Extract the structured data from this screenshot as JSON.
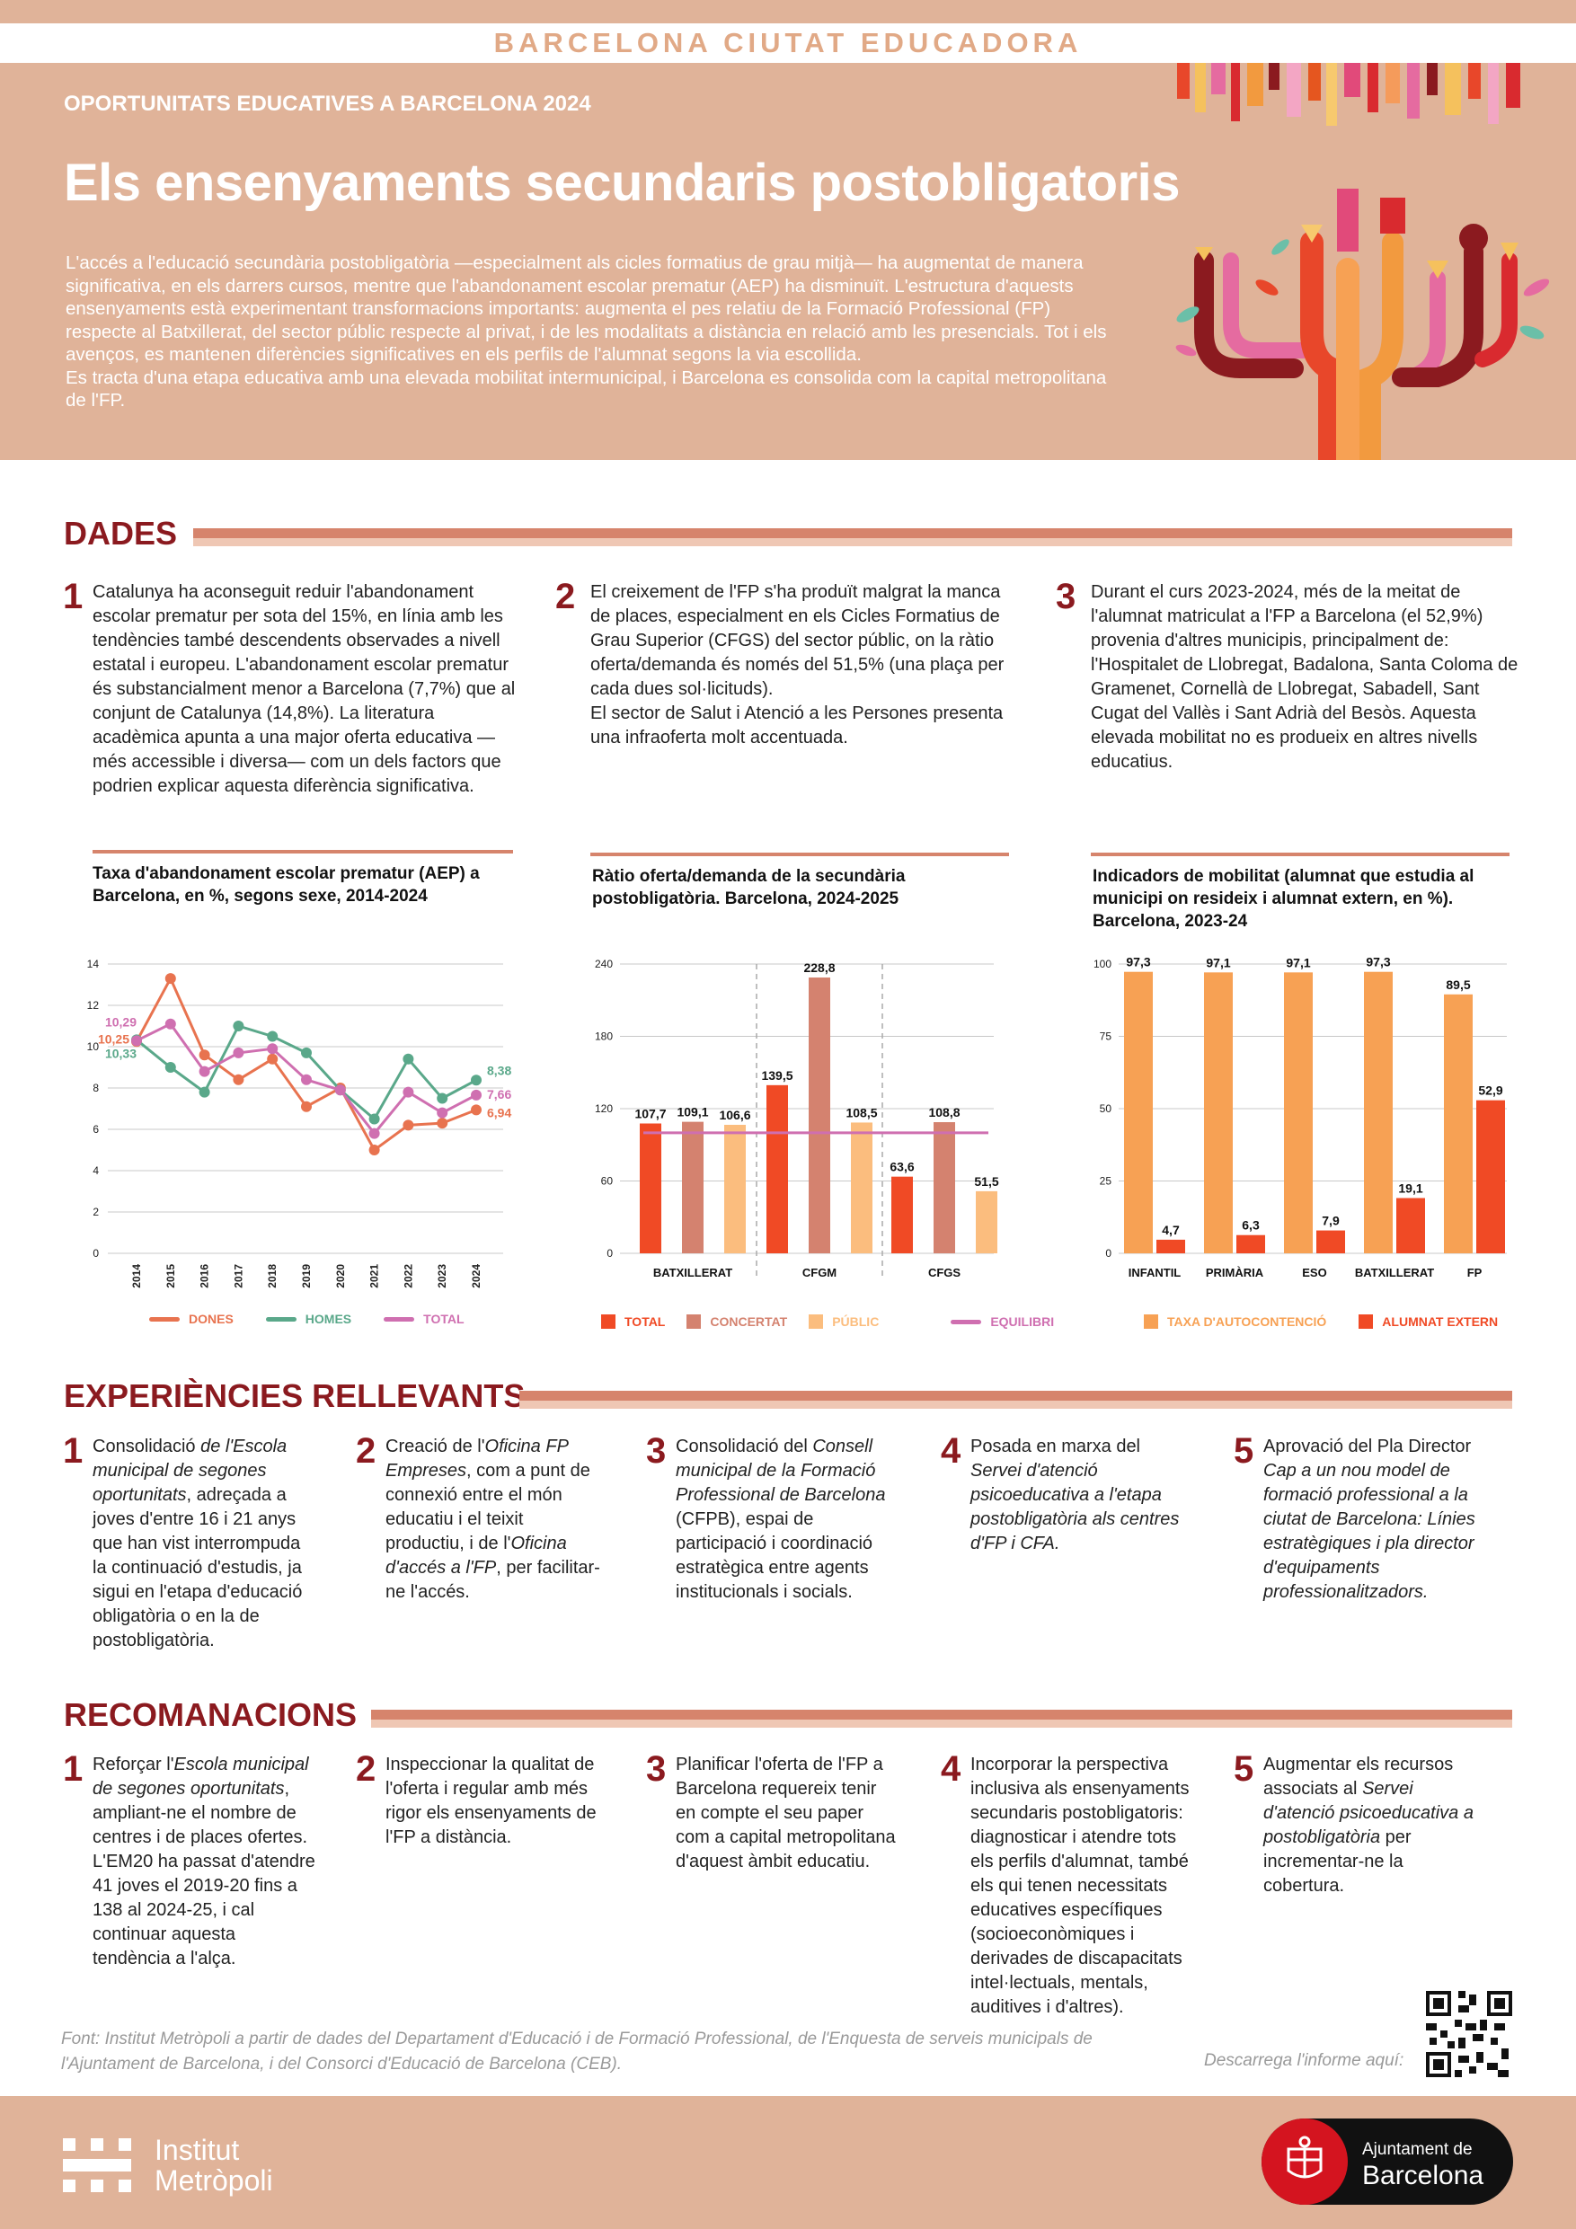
{
  "header": {
    "brand": "BARCELONA CIUTAT EDUCADORA"
  },
  "hero": {
    "kicker": "OPORTUNITATS EDUCATIVES A BARCELONA 2024",
    "title": "Els ensenyaments secundaris postobligatoris",
    "intro_1": "L'accés a l'educació secundària postobligatòria —especialment als cicles formatius de grau mitjà— ha augmentat de manera significativa, en els darrers cursos, mentre que l'abandonament escolar prematur (AEP) ha disminuït. L'estructura d'aquests ensenyaments està experimentant transformacions importants: augmenta el pes relatiu de la Formació Professional (FP) respecte al Batxillerat, del sector públic respecte al privat, i de les modalitats a distància en relació amb les presencials. Tot i els avenços, es mantenen diferències significatives en els perfils de l'alumnat segons la via escollida.",
    "intro_2": "Es tracta d'una etapa educativa amb una elevada mobilitat intermunicipal, i Barcelona es consolida com la capital metropolitana de l'FP."
  },
  "dades": {
    "title": "DADES",
    "items": [
      {
        "num": "1",
        "text": "Catalunya ha aconseguit reduir l'abandonament escolar prematur per sota del 15%, en línia amb les tendències també descendents observades a nivell estatal i europeu. L'abandonament escolar prematur és substancialment menor a Barcelona (7,7%) que al conjunt de Catalunya (14,8%). La literatura acadèmica apunta a una major oferta educativa —més accessible i diversa— com un dels factors que podrien explicar aquesta diferència significativa."
      },
      {
        "num": "2",
        "text_a": "El creixement de l'FP s'ha produït malgrat la manca de places, especialment en els Cicles Formatius de Grau Superior (CFGS) del sector públic, on la ràtio oferta/demanda és només del 51,5% (una plaça per cada dues sol·licituds).",
        "text_b": "El sector de Salut i Atenció a les Persones presenta una infraoferta molt accentuada."
      },
      {
        "num": "3",
        "text": "Durant el curs 2023-2024, més de la meitat de l'alumnat matriculat a l'FP a Barcelona (el 52,9%) provenia d'altres municipis, principalment de: l'Hospitalet de Llobregat, Badalona, Santa Coloma de Gramenet, Cornellà de Llobregat, Sabadell, Sant Cugat del Vallès i Sant Adrià del Besòs. Aquesta elevada mobilitat no es produeix en altres nivells educatius."
      }
    ]
  },
  "chart_data": [
    {
      "type": "line",
      "title": "Taxa d'abandonament escolar prematur (AEP) a Barcelona, en %, segons sexe, 2014-2024",
      "x": [
        "2014",
        "2015",
        "2016",
        "2017",
        "2018",
        "2019",
        "2020",
        "2021",
        "2022",
        "2023",
        "2024"
      ],
      "ylim": [
        0,
        14
      ],
      "yticks": [
        "0",
        "2",
        "4",
        "6",
        "8",
        "10",
        "12",
        "14"
      ],
      "series": [
        {
          "name": "DONES",
          "color": "#e8734f",
          "values": [
            10.25,
            13.3,
            9.6,
            8.4,
            9.4,
            7.1,
            8.0,
            5.0,
            6.2,
            6.3,
            6.94
          ]
        },
        {
          "name": "HOMES",
          "color": "#5aa88a",
          "values": [
            10.33,
            9.0,
            7.8,
            11.0,
            10.5,
            9.7,
            7.9,
            6.5,
            9.4,
            7.5,
            8.38
          ]
        },
        {
          "name": "TOTAL",
          "color": "#cf6fb0",
          "values": [
            10.29,
            11.1,
            8.8,
            9.7,
            9.9,
            8.4,
            7.9,
            5.8,
            7.8,
            6.8,
            7.66
          ]
        }
      ],
      "labels_start": {
        "DONES": "10,25",
        "HOMES": "10,33",
        "TOTAL": "10,29"
      },
      "labels_end": {
        "DONES": "6,94",
        "HOMES": "8,38",
        "TOTAL": "7,66"
      }
    },
    {
      "type": "bar",
      "title": "Ràtio oferta/demanda de la secundària postobligatòria. Barcelona, 2024-2025",
      "categories": [
        "BATXILLERAT",
        "CFGM",
        "CFGS"
      ],
      "ylim": [
        0,
        240
      ],
      "yticks": [
        "0",
        "60",
        "120",
        "180",
        "240"
      ],
      "series": [
        {
          "name": "TOTAL",
          "color": "#f04a25",
          "values": [
            107.7,
            139.5,
            63.6
          ],
          "labels": [
            "107,7",
            "139,5",
            "63,6"
          ]
        },
        {
          "name": "CONCERTAT",
          "color": "#d4826f",
          "values": [
            109.1,
            228.8,
            108.8
          ],
          "labels": [
            "109,1",
            "228,8",
            "108,8"
          ]
        },
        {
          "name": "PÚBLIC",
          "color": "#fbbd7e",
          "values": [
            106.6,
            108.5,
            51.5
          ],
          "labels": [
            "106,6",
            "108,5",
            "51,5"
          ]
        }
      ],
      "reference": {
        "name": "EQUILIBRI",
        "color": "#cf6fb0",
        "value": 100
      }
    },
    {
      "type": "bar",
      "title": "Indicadors de mobilitat (alumnat que estudia al municipi on resideix i alumnat extern, en %). Barcelona, 2023-24",
      "categories": [
        "INFANTIL",
        "PRIMÀRIA",
        "ESO",
        "BATXILLERAT",
        "FP"
      ],
      "ylim": [
        0,
        100
      ],
      "yticks": [
        "0",
        "25",
        "50",
        "75",
        "100"
      ],
      "series": [
        {
          "name": "TAXA D'AUTOCONTENCIÓ",
          "color": "#f7a154",
          "values": [
            97.3,
            97.1,
            97.1,
            97.3,
            89.5
          ],
          "labels": [
            "97,3",
            "97,1",
            "97,1",
            "97,3",
            "89,5"
          ]
        },
        {
          "name": "ALUMNAT EXTERN",
          "color": "#f04a25",
          "values": [
            4.7,
            6.3,
            7.9,
            19.1,
            52.9
          ],
          "labels": [
            "4,7",
            "6,3",
            "7,9",
            "19,1",
            "52,9"
          ]
        }
      ]
    }
  ],
  "experiencies": {
    "title": "EXPERIÈNCIES RELLEVANTS",
    "items": [
      {
        "num": "1",
        "pre": "Consolidació ",
        "em": "de l'Escola municipal de segones oportunitats",
        "post": ", adreçada a joves d'entre 16 i 21 anys que han vist interrompuda la continuació d'estudis, ja sigui en l'etapa d'educació obligatòria o en la de postobligatòria."
      },
      {
        "num": "2",
        "pre": "Creació de l'",
        "em": "Oficina FP Empreses",
        "post": ", com a punt de connexió entre el món educatiu i el teixit productiu, i de l'",
        "em2": "Oficina d'accés a l'FP",
        "post2": ", per facilitar-ne l'accés."
      },
      {
        "num": "3",
        "pre": "Consolidació del ",
        "em": "Consell municipal de la Formació Professional de Barcelona",
        "post": " (CFPB), espai de participació i coordinació estratègica entre agents institucionals i socials."
      },
      {
        "num": "4",
        "pre": "Posada en marxa del ",
        "em": "Servei d'atenció psicoeducativa a l'etapa postobligatòria als centres d'FP i CFA.",
        "post": ""
      },
      {
        "num": "5",
        "pre": "Aprovació del Pla Director ",
        "em": "Cap a un nou model de formació professional a la ciutat de Barcelona: Línies estratègiques i pla director d'equipaments professionalitzadors.",
        "post": ""
      }
    ]
  },
  "recomanacions": {
    "title": "RECOMANACIONS",
    "items": [
      {
        "num": "1",
        "pre": "Reforçar l'",
        "em": "Escola municipal de segones oportunitats",
        "post": ", ampliant-ne el nombre de centres i de places ofertes. L'EM20 ha passat d'atendre 41 joves el 2019-20 fins a 138 al 2024-25, i cal continuar aquesta tendència a l'alça."
      },
      {
        "num": "2",
        "pre": "Inspeccionar la qualitat de l'oferta i regular amb més rigor els ensenyaments de l'FP a distància.",
        "em": "",
        "post": ""
      },
      {
        "num": "3",
        "pre": "Planificar l'oferta de l'FP a Barcelona requereix tenir en compte el seu paper com a capital metropolitana d'aquest àmbit educatiu.",
        "em": "",
        "post": ""
      },
      {
        "num": "4",
        "pre": "Incorporar la perspectiva inclusiva als ensenyaments secundaris postobligatoris: diagnosticar i atendre tots els perfils d'alumnat, també els qui tenen necessitats educatives específiques (socioeconòmiques i derivades de discapacitats intel·lectuals, mentals, auditives i d'altres).",
        "em": "",
        "post": ""
      },
      {
        "num": "5",
        "pre": "Augmentar els recursos associats al ",
        "em": "Servei d'atenció psicoeducativa a postobligatòria",
        "post": " per incrementar-ne la cobertura."
      }
    ]
  },
  "footer": {
    "source": "Font: Institut Metròpoli a partir de dades del Departament d'Educació i de Formació Professional, de l'Enquesta de serveis municipals de l'Ajuntament de Barcelona, i del Consorci d'Educació de Barcelona (CEB).",
    "download": "Descarrega l'informe aquí:",
    "im_line1": "Institut",
    "im_line2": "Metròpoli",
    "bcn_line1": "Ajuntament de",
    "bcn_line2": "Barcelona"
  },
  "colors": {
    "accent": "#8b1a1f",
    "hero_bg": "#e0b399",
    "rule": "#d6846c"
  }
}
